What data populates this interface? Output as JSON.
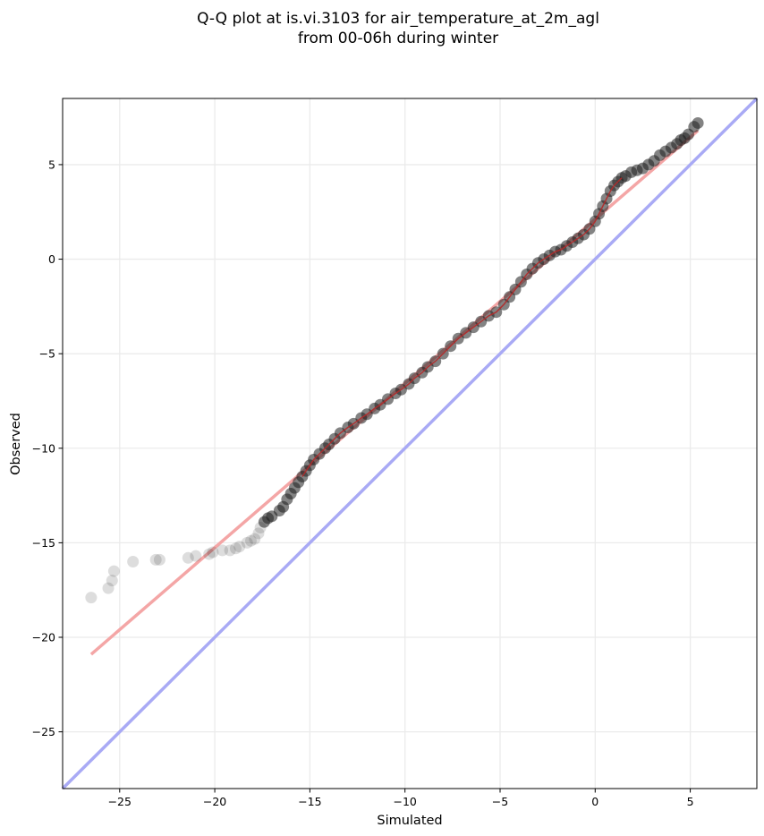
{
  "chart_data": {
    "type": "scatter",
    "title_lines": [
      "Q-Q plot at is.vi.3103 for air_temperature_at_2m_agl",
      "from 00-06h during winter"
    ],
    "xlabel": "Simulated",
    "ylabel": "Observed",
    "xlim": [
      -28,
      8.5
    ],
    "ylim": [
      -28,
      8.5
    ],
    "xticks": [
      -25,
      -20,
      -15,
      -10,
      -5,
      0,
      5
    ],
    "yticks": [
      -25,
      -20,
      -15,
      -10,
      -5,
      0,
      5
    ],
    "xtick_labels": [
      "−25",
      "−20",
      "−15",
      "−10",
      "−5",
      "0",
      "5"
    ],
    "ytick_labels": [
      "−25",
      "−20",
      "−15",
      "−10",
      "−5",
      "0",
      "5"
    ],
    "grid": true,
    "quantile_points": [
      [
        -26.5,
        -17.9
      ],
      [
        -25.6,
        -17.4
      ],
      [
        -25.4,
        -17.0
      ],
      [
        -25.3,
        -16.5
      ],
      [
        -24.3,
        -16.0
      ],
      [
        -23.1,
        -15.9
      ],
      [
        -22.9,
        -15.9
      ],
      [
        -21.4,
        -15.8
      ],
      [
        -21.0,
        -15.7
      ],
      [
        -20.3,
        -15.6
      ],
      [
        -20.1,
        -15.5
      ],
      [
        -19.6,
        -15.4
      ],
      [
        -19.2,
        -15.4
      ],
      [
        -18.9,
        -15.3
      ],
      [
        -18.7,
        -15.2
      ],
      [
        -18.3,
        -15.0
      ],
      [
        -18.1,
        -14.9
      ],
      [
        -17.9,
        -14.8
      ],
      [
        -17.7,
        -14.5
      ],
      [
        -17.6,
        -14.2
      ],
      [
        -17.4,
        -13.9
      ],
      [
        -17.2,
        -13.7
      ],
      [
        -17.0,
        -13.6
      ],
      [
        -16.6,
        -13.3
      ],
      [
        -16.4,
        -13.1
      ],
      [
        -16.2,
        -12.7
      ],
      [
        -16.0,
        -12.4
      ],
      [
        -15.8,
        -12.1
      ],
      [
        -15.6,
        -11.8
      ],
      [
        -15.4,
        -11.5
      ],
      [
        -15.2,
        -11.2
      ],
      [
        -15.0,
        -10.9
      ],
      [
        -14.8,
        -10.6
      ],
      [
        -14.5,
        -10.3
      ],
      [
        -14.2,
        -10.0
      ],
      [
        -14.0,
        -9.8
      ],
      [
        -13.7,
        -9.5
      ],
      [
        -13.4,
        -9.2
      ],
      [
        -13.0,
        -8.9
      ],
      [
        -12.7,
        -8.7
      ],
      [
        -12.3,
        -8.4
      ],
      [
        -12.0,
        -8.2
      ],
      [
        -11.6,
        -7.9
      ],
      [
        -11.3,
        -7.7
      ],
      [
        -10.9,
        -7.4
      ],
      [
        -10.5,
        -7.1
      ],
      [
        -10.2,
        -6.9
      ],
      [
        -9.8,
        -6.6
      ],
      [
        -9.5,
        -6.3
      ],
      [
        -9.1,
        -6.0
      ],
      [
        -8.8,
        -5.7
      ],
      [
        -8.4,
        -5.4
      ],
      [
        -8.0,
        -5.0
      ],
      [
        -7.6,
        -4.6
      ],
      [
        -7.2,
        -4.2
      ],
      [
        -6.8,
        -3.9
      ],
      [
        -6.4,
        -3.6
      ],
      [
        -6.0,
        -3.3
      ],
      [
        -5.6,
        -3.0
      ],
      [
        -5.2,
        -2.8
      ],
      [
        -4.8,
        -2.4
      ],
      [
        -4.5,
        -2.0
      ],
      [
        -4.2,
        -1.6
      ],
      [
        -3.9,
        -1.2
      ],
      [
        -3.6,
        -0.8
      ],
      [
        -3.3,
        -0.5
      ],
      [
        -3.0,
        -0.2
      ],
      [
        -2.7,
        0.0
      ],
      [
        -2.4,
        0.2
      ],
      [
        -2.1,
        0.4
      ],
      [
        -1.8,
        0.5
      ],
      [
        -1.5,
        0.7
      ],
      [
        -1.2,
        0.9
      ],
      [
        -0.9,
        1.1
      ],
      [
        -0.6,
        1.3
      ],
      [
        -0.3,
        1.6
      ],
      [
        0.0,
        2.0
      ],
      [
        0.2,
        2.4
      ],
      [
        0.4,
        2.8
      ],
      [
        0.6,
        3.2
      ],
      [
        0.8,
        3.6
      ],
      [
        1.0,
        3.9
      ],
      [
        1.2,
        4.1
      ],
      [
        1.4,
        4.3
      ],
      [
        1.6,
        4.4
      ],
      [
        1.9,
        4.6
      ],
      [
        2.2,
        4.7
      ],
      [
        2.5,
        4.8
      ],
      [
        2.8,
        5.0
      ],
      [
        3.1,
        5.2
      ],
      [
        3.4,
        5.5
      ],
      [
        3.7,
        5.7
      ],
      [
        4.0,
        5.9
      ],
      [
        4.3,
        6.1
      ],
      [
        4.5,
        6.3
      ],
      [
        4.7,
        6.4
      ],
      [
        4.9,
        6.6
      ],
      [
        5.2,
        7.0
      ],
      [
        5.4,
        7.2
      ]
    ],
    "fit_line": {
      "x": [
        -26.5,
        5.4
      ],
      "y": [
        -20.9,
        6.8
      ],
      "color": "#f4a6a6"
    },
    "identity_line": {
      "x": [
        -28,
        8.5
      ],
      "y": [
        -28,
        8.5
      ],
      "color": "#a9aaf5"
    },
    "trend_line_color": "#b22a2a",
    "point_color": "#1e1e1e"
  }
}
